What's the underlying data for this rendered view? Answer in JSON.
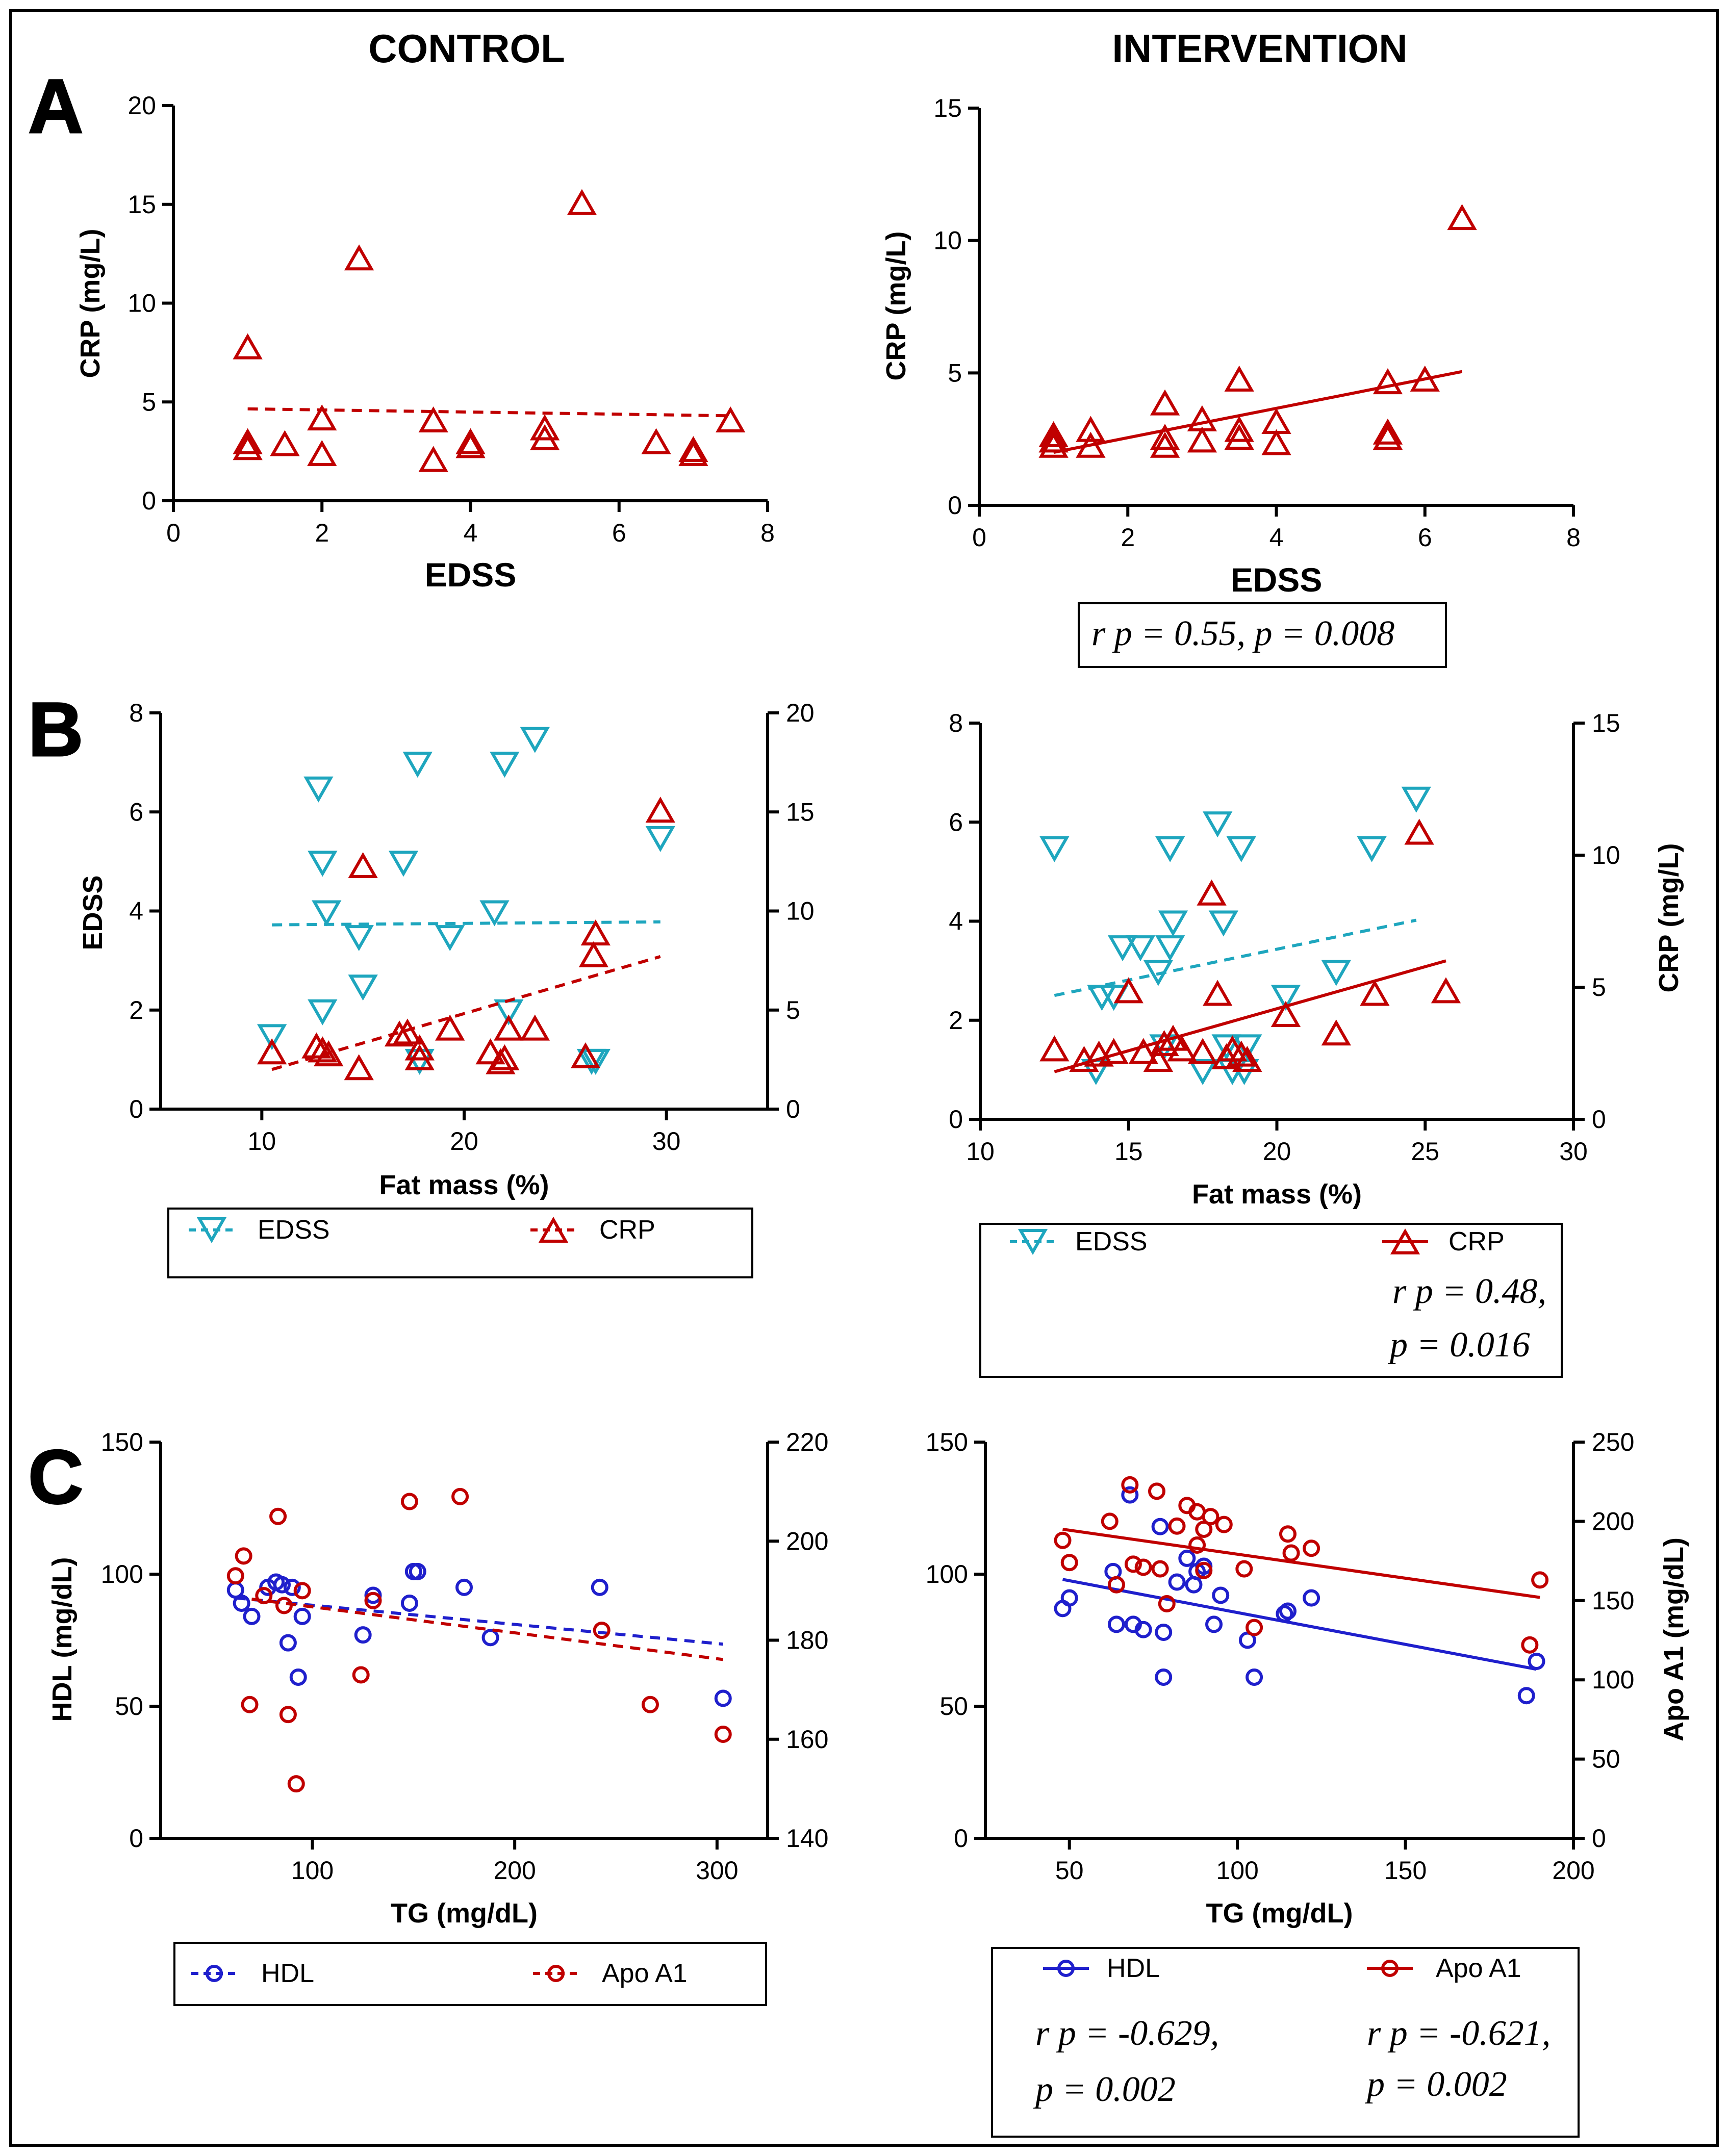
{
  "columns": {
    "control": "CONTROL",
    "intervention": "INTERVENTION"
  },
  "panel_letters": {
    "a": "A",
    "b": "B",
    "c": "C"
  },
  "colors": {
    "red": "#C00000",
    "blue": "#1F1FCC",
    "cyan": "#1EA6BE",
    "axis": "#000000"
  },
  "chart_data": [
    {
      "id": "A_control",
      "type": "scatter",
      "xlabel": "EDSS",
      "ylabel": "CRP (mg/L)",
      "xlim": [
        0,
        8
      ],
      "xticks": [
        0,
        2,
        4,
        6,
        8
      ],
      "ylim": [
        0,
        20
      ],
      "yticks": [
        0,
        5,
        10,
        15,
        20
      ],
      "series": [
        {
          "name": "CRP",
          "color": "#C00000",
          "marker": "triangle-up",
          "axis": "left",
          "x": [
            1,
            1,
            1,
            1.5,
            2,
            2,
            2.5,
            3.5,
            3.5,
            4,
            4,
            5,
            5,
            5.5,
            6.5,
            7,
            7,
            7.5
          ],
          "y": [
            7.7,
            2.9,
            2.6,
            2.8,
            4.1,
            2.3,
            12.2,
            4.0,
            2.0,
            2.9,
            2.7,
            3.6,
            3.1,
            15.0,
            2.9,
            2.5,
            2.3,
            4.0
          ],
          "fit": {
            "x": [
              1,
              7.5
            ],
            "y": [
              4.65,
              4.3
            ],
            "style": "dashed"
          }
        }
      ]
    },
    {
      "id": "A_intervention",
      "type": "scatter",
      "xlabel": "EDSS",
      "ylabel": "CRP (mg/L)",
      "xlim": [
        0,
        8
      ],
      "xticks": [
        0,
        2,
        4,
        6,
        8
      ],
      "ylim": [
        0,
        15
      ],
      "yticks": [
        0,
        5,
        10,
        15
      ],
      "annotation": "r p = 0.55, p = 0.008",
      "series": [
        {
          "name": "CRP",
          "color": "#C00000",
          "marker": "triangle-up",
          "axis": "left",
          "x": [
            1,
            1,
            1,
            1.5,
            1.5,
            2.5,
            2.5,
            2.5,
            3,
            3,
            3.5,
            3.5,
            3.5,
            4,
            4,
            5.5,
            5.5,
            5.5,
            6,
            6.5
          ],
          "y": [
            2.6,
            2.4,
            2.2,
            2.8,
            2.2,
            3.8,
            2.5,
            2.2,
            3.2,
            2.4,
            4.7,
            2.8,
            2.5,
            3.1,
            2.3,
            4.6,
            2.7,
            2.5,
            4.7,
            10.8
          ],
          "fit": {
            "x": [
              1,
              6.5
            ],
            "y": [
              2.0,
              5.05
            ],
            "style": "solid"
          }
        }
      ]
    },
    {
      "id": "B_control",
      "type": "scatter",
      "xlabel": "Fat mass (%)",
      "ylabel": "EDSS",
      "ylabel_right": "",
      "xlim": [
        5,
        35
      ],
      "xticks": [
        10,
        20,
        30
      ],
      "ylim": [
        0,
        8
      ],
      "yticks": [
        0,
        2,
        4,
        6,
        8
      ],
      "ylim_right": [
        0,
        20
      ],
      "yticks_right": [
        0,
        5,
        10,
        15,
        20
      ],
      "legend": [
        "EDSS",
        "CRP"
      ],
      "series": [
        {
          "name": "EDSS",
          "color": "#1EA6BE",
          "marker": "triangle-down",
          "axis": "left",
          "x": [
            10.5,
            12.8,
            13,
            13.2,
            13,
            14.8,
            15,
            17,
            17.7,
            17.8,
            19.3,
            21.5,
            22,
            22.2,
            23.5,
            26.3,
            26.5,
            29.7
          ],
          "y": [
            1.5,
            6.5,
            5.0,
            4.0,
            2.0,
            3.5,
            2.5,
            5.0,
            7.0,
            1.0,
            3.5,
            4.0,
            7.0,
            2.0,
            7.5,
            1.0,
            1.0,
            5.5
          ],
          "fit": {
            "x": [
              10.5,
              29.7
            ],
            "y": [
              3.72,
              3.78
            ],
            "style": "dashed"
          }
        },
        {
          "name": "CRP",
          "color": "#C00000",
          "marker": "triangle-up",
          "axis": "right",
          "x": [
            10.5,
            12.7,
            13,
            13.3,
            14.8,
            15,
            16.8,
            17.2,
            17.8,
            17.8,
            19.3,
            21.3,
            21.8,
            22,
            22.2,
            23.5,
            26,
            26.4,
            26.5,
            29.7
          ],
          "y": [
            2.8,
            3.1,
            2.9,
            2.7,
            2.0,
            12.2,
            3.7,
            3.8,
            3.0,
            2.5,
            4.0,
            2.8,
            2.3,
            2.5,
            4.0,
            4.0,
            2.6,
            7.7,
            8.8,
            15.0
          ],
          "fit": {
            "x": [
              10.5,
              29.7
            ],
            "y": [
              2.0,
              7.7
            ],
            "style": "dashed"
          }
        }
      ]
    },
    {
      "id": "B_intervention",
      "type": "scatter",
      "xlabel": "Fat mass (%)",
      "ylabel": "",
      "ylabel_right": "CRP (mg/L)",
      "xlim": [
        10,
        30
      ],
      "xticks": [
        10,
        15,
        20,
        25,
        30
      ],
      "ylim": [
        0,
        8
      ],
      "yticks": [
        0,
        2,
        4,
        6,
        8
      ],
      "ylim_right": [
        0,
        15
      ],
      "yticks_right": [
        0,
        5,
        10,
        15
      ],
      "legend": [
        "EDSS",
        "CRP"
      ],
      "annotation_lines": [
        "r p = 0.48,",
        "p = 0.016"
      ],
      "series": [
        {
          "name": "EDSS",
          "color": "#1EA6BE",
          "marker": "triangle-down",
          "axis": "left",
          "x": [
            12.5,
            13.9,
            14.1,
            14.5,
            14.8,
            15.4,
            16.0,
            16.2,
            16.4,
            16.5,
            16.4,
            17.5,
            18.0,
            18.2,
            18.3,
            18.5,
            18.8,
            18.9,
            19.0,
            20.3,
            22.0,
            23.2,
            24.7
          ],
          "y": [
            5.5,
            1.0,
            2.5,
            2.5,
            3.5,
            3.5,
            3.0,
            1.5,
            5.5,
            4.0,
            3.5,
            1.0,
            6.0,
            4.0,
            1.5,
            1.0,
            5.5,
            1.0,
            1.5,
            2.5,
            3.0,
            5.5,
            6.5
          ],
          "fit": {
            "x": [
              12.5,
              24.7
            ],
            "y": [
              2.5,
              4.02
            ],
            "style": "dashed"
          }
        },
        {
          "name": "CRP",
          "color": "#C00000",
          "marker": "triangle-up",
          "axis": "right",
          "x": [
            12.5,
            13.5,
            14.0,
            14.5,
            15.0,
            15.5,
            16.0,
            16.2,
            16.5,
            16.8,
            17.5,
            17.8,
            18.0,
            18.3,
            18.5,
            18.8,
            19.0,
            20.3,
            22.0,
            23.3,
            24.8,
            25.7
          ],
          "y": [
            2.6,
            2.2,
            2.4,
            2.5,
            4.8,
            2.5,
            2.2,
            2.8,
            3.0,
            2.6,
            2.5,
            8.5,
            4.7,
            2.3,
            2.6,
            2.4,
            2.2,
            3.9,
            3.2,
            4.7,
            10.8,
            4.8
          ],
          "fit": {
            "x": [
              12.5,
              25.7
            ],
            "y": [
              1.8,
              6.0
            ],
            "style": "solid"
          }
        }
      ]
    },
    {
      "id": "C_control",
      "type": "scatter",
      "xlabel": "TG (mg/dL)",
      "ylabel": "HDL (mg/dL)",
      "ylabel_right": "",
      "xlim": [
        25,
        325
      ],
      "xticks": [
        100,
        200,
        300
      ],
      "ylim": [
        0,
        150
      ],
      "yticks": [
        0,
        50,
        100,
        150
      ],
      "ylim_right": [
        140,
        220
      ],
      "yticks_right": [
        140,
        160,
        180,
        200,
        220
      ],
      "legend": [
        "HDL",
        "Apo A1"
      ],
      "series": [
        {
          "name": "HDL",
          "color": "#1F1FCC",
          "marker": "circle",
          "axis": "left",
          "x": [
            62,
            65,
            70,
            78,
            82,
            85,
            88,
            90,
            93,
            95,
            125,
            130,
            148,
            150,
            152,
            175,
            188,
            242,
            303
          ],
          "y": [
            94,
            89,
            84,
            95,
            97,
            96,
            74,
            95,
            61,
            84,
            77,
            92,
            89,
            101,
            101,
            95,
            76,
            95,
            53
          ],
          "fit": {
            "x": [
              62,
              303
            ],
            "y": [
              91,
              73.5
            ],
            "style": "dashed"
          }
        },
        {
          "name": "Apo A1",
          "color": "#C00000",
          "marker": "circle",
          "axis": "right",
          "x": [
            62,
            66,
            69,
            76,
            83,
            86,
            88,
            92,
            95,
            124,
            130,
            148,
            173,
            243,
            267,
            303
          ],
          "y": [
            193,
            197,
            167,
            189,
            205,
            187,
            165,
            151,
            190,
            173,
            188,
            208,
            209,
            182,
            167,
            161
          ],
          "fit": {
            "x": [
              70,
              303
            ],
            "y": [
              188.3,
              176.1
            ],
            "style": "dashed"
          }
        }
      ]
    },
    {
      "id": "C_intervention",
      "type": "scatter",
      "xlabel": "TG (mg/dL)",
      "ylabel": "",
      "ylabel_right": "Apo A1 (mg/dL)",
      "xlim": [
        25,
        200
      ],
      "xticks": [
        50,
        100,
        150,
        200
      ],
      "ylim": [
        0,
        150
      ],
      "yticks": [
        0,
        50,
        100,
        150
      ],
      "ylim_right": [
        0,
        250
      ],
      "yticks_right": [
        0,
        50,
        100,
        150,
        200,
        250
      ],
      "legend": [
        "HDL",
        "Apo A1"
      ],
      "annotation_lines": [
        "r p = -0.629,",
        "p = 0.002",
        "r p = -0.621,",
        "p = 0.002"
      ],
      "series": [
        {
          "name": "HDL",
          "color": "#1F1FCC",
          "marker": "circle",
          "axis": "left",
          "x": [
            48,
            50,
            63,
            64,
            68,
            69,
            72,
            77,
            78,
            78,
            82,
            85,
            87,
            88,
            90,
            93,
            95,
            103,
            105,
            114,
            115,
            122,
            186,
            189
          ],
          "y": [
            87,
            91,
            101,
            81,
            130,
            81,
            79,
            118,
            78,
            61,
            97,
            106,
            96,
            101,
            103,
            81,
            92,
            75,
            61,
            85,
            86,
            91,
            54,
            67
          ],
          "fit": {
            "x": [
              48,
              189
            ],
            "y": [
              98,
              64
            ],
            "style": "solid"
          }
        },
        {
          "name": "Apo A1",
          "color": "#C00000",
          "marker": "circle",
          "axis": "right",
          "x": [
            48,
            50,
            62,
            64,
            68,
            69,
            72,
            76,
            77,
            79,
            82,
            85,
            88,
            88,
            90,
            90,
            92,
            96,
            102,
            105,
            115,
            116,
            122,
            187,
            190
          ],
          "y": [
            188,
            174,
            200,
            160,
            223,
            173,
            171,
            219,
            170,
            148,
            197,
            210,
            185,
            206,
            195,
            169,
            203,
            198,
            170,
            133,
            192,
            180,
            183,
            122,
            163
          ],
          "fit": {
            "x": [
              48,
              190
            ],
            "y": [
              195,
              152
            ],
            "style": "solid"
          }
        }
      ]
    }
  ]
}
